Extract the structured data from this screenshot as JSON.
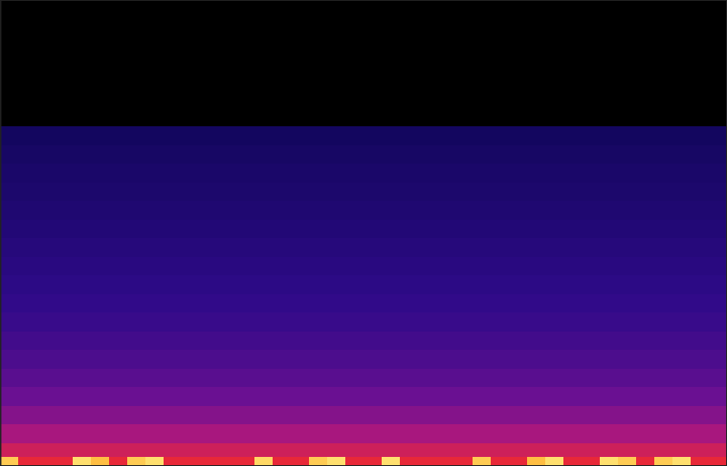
{
  "chart_data": {
    "type": "heatmap",
    "xlim": [
      0,
      100
    ],
    "ylim": [
      0,
      100
    ],
    "tick_labels": false,
    "zlim": [
      -120,
      0
    ],
    "x_bins": [
      0,
      2.5,
      5,
      7.5,
      10,
      12.5,
      15,
      17.5,
      20,
      22.5,
      25,
      27.5,
      30,
      32.5,
      35,
      37.5,
      40,
      42.5,
      45,
      47.5,
      50,
      52.5,
      55,
      57.5,
      60,
      62.5,
      65,
      67.5,
      70,
      72.5,
      75,
      77.5,
      80,
      82.5,
      85,
      87.5,
      90,
      92.5,
      95,
      97.5,
      100
    ],
    "y_bins": [
      0,
      2,
      5,
      9,
      13,
      17,
      21,
      25,
      29,
      33,
      37,
      41,
      45,
      49,
      53,
      57,
      61,
      65,
      69,
      73,
      100
    ],
    "cells": [
      [
        -8,
        -30,
        -30,
        -30,
        -5,
        -10,
        -30,
        -8,
        -5,
        -30,
        -30,
        -30,
        -30,
        -30,
        -6,
        -30,
        -30,
        -8,
        -5,
        -30,
        -30,
        -5,
        -30,
        -30,
        -30,
        -30,
        -8,
        -30,
        -30,
        -10,
        -5,
        -30,
        -30,
        -5,
        -8,
        -30,
        -8,
        -5,
        -30,
        -30
      ],
      [
        -38,
        -38,
        -38,
        -38,
        -38,
        -38,
        -38,
        -38,
        -38,
        -38,
        -38,
        -38,
        -38,
        -38,
        -38,
        -38,
        -38,
        -38,
        -38,
        -38,
        -38,
        -38,
        -38,
        -38,
        -38,
        -38,
        -38,
        -38,
        -38,
        -38,
        -38,
        -38,
        -38,
        -38,
        -38,
        -38,
        -38,
        -38,
        -38,
        -38
      ],
      [
        -48,
        -48,
        -48,
        -48,
        -48,
        -48,
        -48,
        -48,
        -48,
        -48,
        -48,
        -48,
        -48,
        -48,
        -48,
        -48,
        -48,
        -48,
        -48,
        -48,
        -48,
        -48,
        -48,
        -48,
        -48,
        -48,
        -48,
        -48,
        -48,
        -48,
        -48,
        -48,
        -48,
        -48,
        -48,
        -48,
        -48,
        -48,
        -48,
        -48
      ],
      [
        -55,
        -55,
        -55,
        -55,
        -55,
        -55,
        -55,
        -55,
        -55,
        -55,
        -55,
        -55,
        -55,
        -55,
        -55,
        -55,
        -55,
        -55,
        -55,
        -55,
        -55,
        -55,
        -55,
        -55,
        -55,
        -55,
        -55,
        -55,
        -55,
        -55,
        -55,
        -55,
        -55,
        -55,
        -55,
        -55,
        -55,
        -55,
        -55,
        -55
      ],
      [
        -60,
        -60,
        -60,
        -60,
        -60,
        -60,
        -60,
        -60,
        -60,
        -60,
        -60,
        -60,
        -60,
        -60,
        -60,
        -60,
        -60,
        -60,
        -60,
        -60,
        -60,
        -60,
        -60,
        -60,
        -60,
        -60,
        -60,
        -60,
        -60,
        -60,
        -60,
        -60,
        -60,
        -60,
        -60,
        -60,
        -60,
        -60,
        -60,
        -60
      ],
      [
        -65,
        -65,
        -65,
        -65,
        -65,
        -65,
        -65,
        -65,
        -65,
        -65,
        -65,
        -65,
        -65,
        -65,
        -65,
        -65,
        -65,
        -65,
        -65,
        -65,
        -65,
        -65,
        -65,
        -65,
        -65,
        -65,
        -65,
        -65,
        -65,
        -65,
        -65,
        -65,
        -65,
        -65,
        -65,
        -65,
        -65,
        -65,
        -65,
        -65
      ],
      [
        -69,
        -69,
        -69,
        -69,
        -69,
        -69,
        -69,
        -69,
        -69,
        -69,
        -69,
        -69,
        -69,
        -69,
        -69,
        -69,
        -69,
        -69,
        -69,
        -69,
        -69,
        -69,
        -69,
        -69,
        -69,
        -69,
        -69,
        -69,
        -69,
        -69,
        -69,
        -69,
        -69,
        -69,
        -69,
        -69,
        -69,
        -69,
        -69,
        -69
      ],
      [
        -72,
        -72,
        -72,
        -72,
        -72,
        -72,
        -72,
        -72,
        -72,
        -72,
        -72,
        -72,
        -72,
        -72,
        -72,
        -72,
        -72,
        -72,
        -72,
        -72,
        -72,
        -72,
        -72,
        -72,
        -72,
        -72,
        -72,
        -72,
        -72,
        -72,
        -72,
        -72,
        -72,
        -72,
        -72,
        -72,
        -72,
        -72,
        -72,
        -72
      ],
      [
        -75,
        -75,
        -75,
        -75,
        -75,
        -75,
        -75,
        -75,
        -75,
        -75,
        -75,
        -75,
        -75,
        -75,
        -75,
        -75,
        -75,
        -75,
        -75,
        -75,
        -75,
        -75,
        -75,
        -75,
        -75,
        -75,
        -75,
        -75,
        -75,
        -75,
        -75,
        -75,
        -75,
        -75,
        -75,
        -75,
        -75,
        -75,
        -75,
        -75
      ],
      [
        -77,
        -77,
        -77,
        -77,
        -77,
        -77,
        -77,
        -77,
        -77,
        -77,
        -77,
        -77,
        -77,
        -77,
        -77,
        -77,
        -77,
        -77,
        -77,
        -77,
        -77,
        -77,
        -77,
        -77,
        -77,
        -77,
        -77,
        -77,
        -77,
        -77,
        -77,
        -77,
        -77,
        -77,
        -77,
        -77,
        -77,
        -77,
        -77,
        -77
      ],
      [
        -79,
        -79,
        -79,
        -79,
        -79,
        -79,
        -79,
        -79,
        -79,
        -79,
        -79,
        -79,
        -79,
        -79,
        -79,
        -79,
        -79,
        -79,
        -79,
        -79,
        -79,
        -79,
        -79,
        -79,
        -79,
        -79,
        -79,
        -79,
        -79,
        -79,
        -79,
        -79,
        -79,
        -79,
        -79,
        -79,
        -79,
        -79,
        -79,
        -79
      ],
      [
        -81,
        -81,
        -81,
        -81,
        -81,
        -81,
        -81,
        -81,
        -81,
        -81,
        -81,
        -81,
        -81,
        -81,
        -81,
        -81,
        -81,
        -81,
        -81,
        -81,
        -81,
        -81,
        -81,
        -81,
        -81,
        -81,
        -81,
        -81,
        -81,
        -81,
        -81,
        -81,
        -81,
        -81,
        -81,
        -81,
        -81,
        -81,
        -81,
        -81
      ],
      [
        -83,
        -83,
        -83,
        -83,
        -83,
        -83,
        -83,
        -83,
        -83,
        -83,
        -83,
        -83,
        -83,
        -83,
        -83,
        -83,
        -83,
        -83,
        -83,
        -83,
        -83,
        -83,
        -83,
        -83,
        -83,
        -83,
        -83,
        -83,
        -83,
        -83,
        -83,
        -83,
        -83,
        -83,
        -83,
        -83,
        -83,
        -83,
        -83,
        -83
      ],
      [
        -85,
        -85,
        -85,
        -85,
        -85,
        -85,
        -85,
        -85,
        -85,
        -85,
        -85,
        -85,
        -85,
        -85,
        -85,
        -85,
        -85,
        -85,
        -85,
        -85,
        -85,
        -85,
        -85,
        -85,
        -85,
        -85,
        -85,
        -85,
        -85,
        -85,
        -85,
        -85,
        -85,
        -85,
        -85,
        -85,
        -85,
        -85,
        -85,
        -85
      ],
      [
        -87,
        -87,
        -87,
        -87,
        -87,
        -87,
        -87,
        -87,
        -87,
        -87,
        -87,
        -87,
        -87,
        -87,
        -87,
        -87,
        -87,
        -87,
        -87,
        -87,
        -87,
        -87,
        -87,
        -87,
        -87,
        -87,
        -87,
        -87,
        -87,
        -87,
        -87,
        -87,
        -87,
        -87,
        -87,
        -87,
        -87,
        -87,
        -87,
        -87
      ],
      [
        -89,
        -89,
        -89,
        -89,
        -89,
        -89,
        -89,
        -89,
        -89,
        -89,
        -89,
        -89,
        -89,
        -89,
        -89,
        -89,
        -89,
        -89,
        -89,
        -89,
        -89,
        -89,
        -89,
        -89,
        -89,
        -89,
        -89,
        -89,
        -89,
        -89,
        -89,
        -89,
        -89,
        -89,
        -89,
        -89,
        -89,
        -89,
        -89,
        -89
      ],
      [
        -90,
        -90,
        -90,
        -90,
        -90,
        -90,
        -90,
        -90,
        -90,
        -90,
        -90,
        -90,
        -90,
        -90,
        -90,
        -90,
        -90,
        -90,
        -90,
        -90,
        -90,
        -90,
        -90,
        -90,
        -90,
        -90,
        -90,
        -90,
        -90,
        -90,
        -90,
        -90,
        -90,
        -90,
        -90,
        -90,
        -90,
        -90,
        -90,
        -90
      ],
      [
        -92,
        -92,
        -92,
        -92,
        -92,
        -92,
        -92,
        -92,
        -92,
        -92,
        -92,
        -92,
        -92,
        -92,
        -92,
        -92,
        -92,
        -92,
        -92,
        -92,
        -92,
        -92,
        -92,
        -92,
        -92,
        -92,
        -92,
        -92,
        -92,
        -92,
        -92,
        -92,
        -92,
        -92,
        -92,
        -92,
        -92,
        -92,
        -92,
        -92
      ],
      [
        -94,
        -94,
        -94,
        -94,
        -94,
        -94,
        -94,
        -94,
        -94,
        -94,
        -94,
        -94,
        -94,
        -94,
        -94,
        -94,
        -94,
        -94,
        -94,
        -94,
        -94,
        -94,
        -94,
        -94,
        -94,
        -94,
        -94,
        -94,
        -94,
        -94,
        -94,
        -94,
        -94,
        -94,
        -94,
        -94,
        -94,
        -94,
        -94,
        -94
      ],
      [
        -120,
        -120,
        -120,
        -120,
        -120,
        -120,
        -120,
        -120,
        -120,
        -120,
        -120,
        -120,
        -120,
        -120,
        -120,
        -120,
        -120,
        -120,
        -120,
        -120,
        -120,
        -120,
        -120,
        -120,
        -120,
        -120,
        -120,
        -120,
        -120,
        -120,
        -120,
        -120,
        -120,
        -120,
        -120,
        -120,
        -120,
        -120,
        -120,
        -120
      ]
    ]
  }
}
